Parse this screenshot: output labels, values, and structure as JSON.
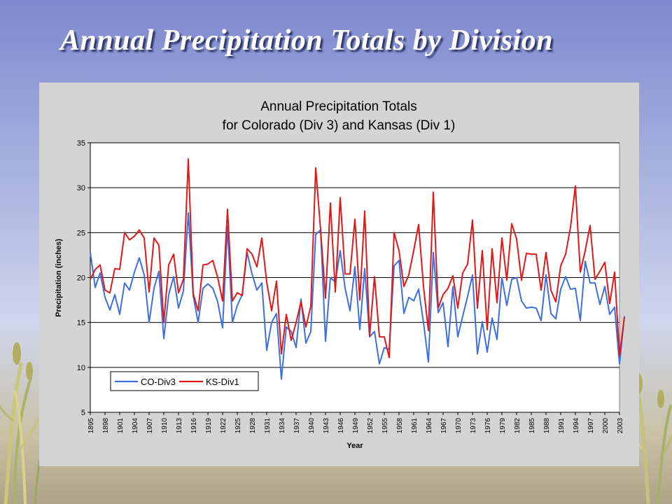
{
  "slide": {
    "title": "Annual Precipitation Totals by Division"
  },
  "chart_data": {
    "type": "line",
    "title_line1": "Annual Precipitation Totals",
    "title_line2": "for Colorado (Div 3) and Kansas (Div 1)",
    "xlabel": "Year",
    "ylabel": "Precipitation (inches)",
    "ylim": [
      5,
      35
    ],
    "yticks": [
      5,
      10,
      15,
      20,
      25,
      30,
      35
    ],
    "grid": true,
    "legend_position": "bottom-left",
    "x_start": 1895,
    "x_end": 2003,
    "x_tick_labels": [
      "1895",
      "1898",
      "1901",
      "1904",
      "1907",
      "1910",
      "1913",
      "1916",
      "1919",
      "1922",
      "1925",
      "1928",
      "1931",
      "1934",
      "1937",
      "1940",
      "1943",
      "1946",
      "1949",
      "1952",
      "1955",
      "1958",
      "1961",
      "1964",
      "1967",
      "1970",
      "1973",
      "1976",
      "1979",
      "1982",
      "1985",
      "1988",
      "1991",
      "1994",
      "1997",
      "2000",
      "2003"
    ],
    "series": [
      {
        "name": "CO-Div3",
        "color": "#3d6fe0",
        "values": [
          22.8,
          18.9,
          20.5,
          17.8,
          16.4,
          18.1,
          15.9,
          19.4,
          18.6,
          20.6,
          22.2,
          20.3,
          15.0,
          18.8,
          20.7,
          13.2,
          18.1,
          20.1,
          16.6,
          18.5,
          27.2,
          18.0,
          15.0,
          18.8,
          19.3,
          18.8,
          17.3,
          14.4,
          25.7,
          15.0,
          16.9,
          18.1,
          22.8,
          20.4,
          18.6,
          19.4,
          11.9,
          15.0,
          16.0,
          8.7,
          14.5,
          14.0,
          12.2,
          17.6,
          12.7,
          14.0,
          24.8,
          25.3,
          12.9,
          20.0,
          19.5,
          23.0,
          18.8,
          16.3,
          21.2,
          14.2,
          21.0,
          13.4,
          14.0,
          10.4,
          12.2,
          12.0,
          21.3,
          21.9,
          16.0,
          17.8,
          17.4,
          18.7,
          15.0,
          10.6,
          22.8,
          16.1,
          17.2,
          12.3,
          19.0,
          13.4,
          15.7,
          17.9,
          20.3,
          11.5,
          15.1,
          11.7,
          15.5,
          13.1,
          20.0,
          16.9,
          19.8,
          20.0,
          17.4,
          16.6,
          16.7,
          16.6,
          15.2,
          20.3,
          16.0,
          15.4,
          18.7,
          20.1,
          18.7,
          18.8,
          15.2,
          21.8,
          19.4,
          19.4,
          17.0,
          19.0,
          15.9,
          16.7,
          10.4,
          15.7
        ]
      },
      {
        "name": "KS-Div1",
        "color": "#e01818",
        "values": [
          19.8,
          20.9,
          21.4,
          18.6,
          18.3,
          21.0,
          20.9,
          25.0,
          24.2,
          24.6,
          25.3,
          24.4,
          18.4,
          24.4,
          23.6,
          15.0,
          21.4,
          22.6,
          18.3,
          19.8,
          33.2,
          18.2,
          16.3,
          21.4,
          21.5,
          21.9,
          20.0,
          17.4,
          27.6,
          17.4,
          18.3,
          18.0,
          23.2,
          22.6,
          21.2,
          24.4,
          19.5,
          16.3,
          19.6,
          11.5,
          15.9,
          13.0,
          15.0,
          17.3,
          14.5,
          16.8,
          32.2,
          25.3,
          17.7,
          28.3,
          18.4,
          28.9,
          20.4,
          20.4,
          26.5,
          17.5,
          27.4,
          13.5,
          20.1,
          13.4,
          13.4,
          11.1,
          25.0,
          23.0,
          19.0,
          20.3,
          23.0,
          25.9,
          19.0,
          14.1,
          29.5,
          16.6,
          18.1,
          18.8,
          20.2,
          16.6,
          20.5,
          21.5,
          26.4,
          16.6,
          23.0,
          14.2,
          23.2,
          17.2,
          24.4,
          19.7,
          26.0,
          24.3,
          19.7,
          22.7,
          22.6,
          22.6,
          18.6,
          22.8,
          18.6,
          17.3,
          21.3,
          22.6,
          25.6,
          30.2,
          20.6,
          23.0,
          25.8,
          19.8,
          20.7,
          21.7,
          17.1,
          20.6,
          11.3,
          15.6
        ]
      }
    ]
  }
}
